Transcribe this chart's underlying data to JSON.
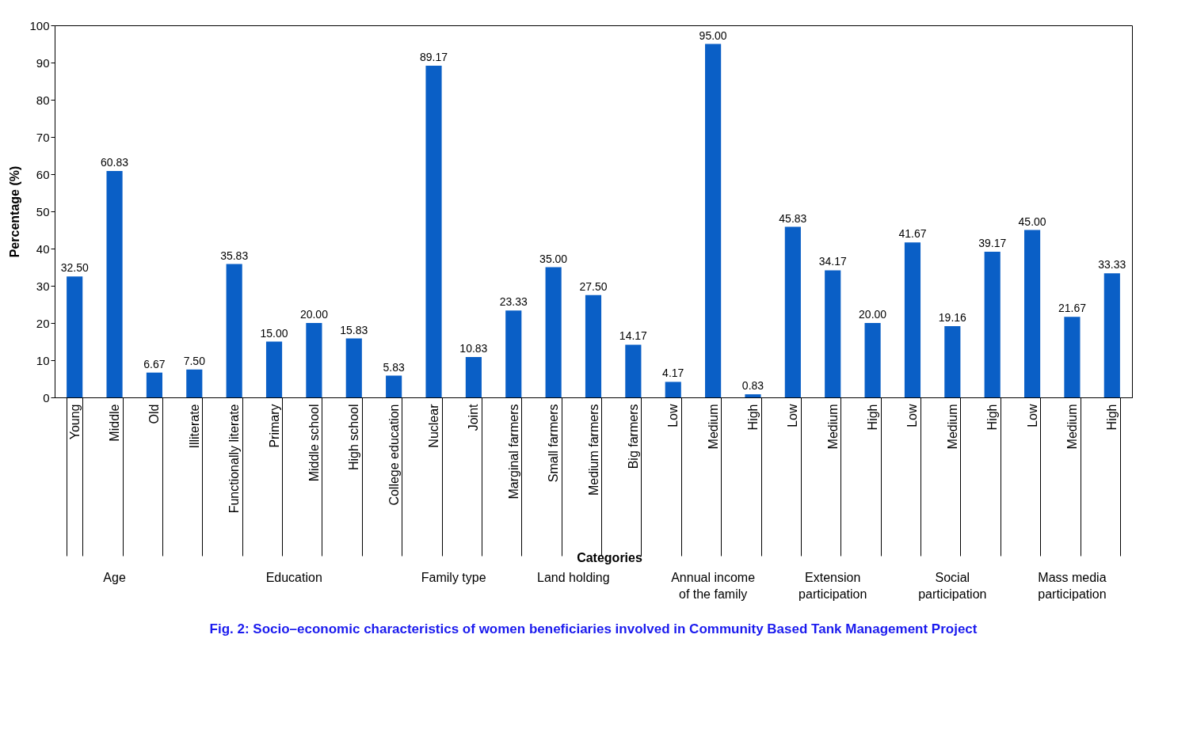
{
  "chart_data": {
    "type": "bar",
    "title": "Fig. 2: Socio–economic characteristics of women beneficiaries involved in Community Based Tank Management Project",
    "xlabel": "Categories",
    "ylabel": "Percentage (%)",
    "categories": [
      "Young",
      "Middle",
      "Old",
      "Illiterate",
      "Functionally literate",
      "Primary",
      "Middle school",
      "High school",
      "College education",
      "Nuclear",
      "Joint",
      "Marginal farmers",
      "Small farmers",
      "Medium farmers",
      "Big farmers",
      "Low",
      "Medium",
      "High",
      "Low",
      "Medium",
      "High",
      "Low",
      "Medium",
      "High",
      "Low",
      "Medium",
      "High"
    ],
    "values": [
      32.5,
      60.83,
      6.67,
      7.5,
      35.83,
      15,
      20,
      15.83,
      5.83,
      89.17,
      10.83,
      23.33,
      35,
      27.5,
      14.17,
      4.17,
      95,
      0.83,
      45.83,
      34.17,
      20,
      41.67,
      19.16,
      39.17,
      45,
      21.67,
      33.33
    ],
    "value_labels": [
      "32.50",
      "60.83",
      "6.67",
      "7.50",
      "35.83",
      "15.00",
      "20.00",
      "15.83",
      "5.83",
      "89.17",
      "10.83",
      "23.33",
      "35.00",
      "27.50",
      "14.17",
      "4.17",
      "95.00",
      "0.83",
      "45.83",
      "34.17",
      "20.00",
      "41.67",
      "19.16",
      "39.17",
      "45.00",
      "21.67",
      "33.33"
    ],
    "color": "#0a5fc6",
    "ylim": [
      0,
      100
    ],
    "yticks": [
      0,
      10,
      20,
      30,
      40,
      50,
      60,
      70,
      80,
      90,
      100
    ],
    "annotations": [
      "Age",
      "Education",
      "Family type",
      "Land holding",
      "Annual income of the family",
      "Extension participation",
      "Social participation",
      "Mass media participation"
    ]
  }
}
